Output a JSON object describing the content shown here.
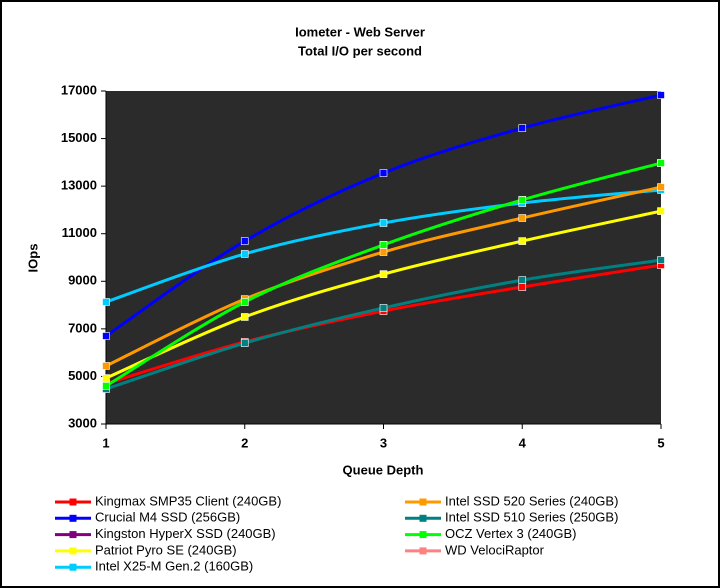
{
  "chart_data": {
    "type": "line",
    "title": "Iometer - Web Server",
    "subtitle": "Total I/O per second",
    "x_label": "Queue Depth",
    "y_label": "IOps",
    "x": [
      1,
      2,
      3,
      4,
      5
    ],
    "xlim": [
      1,
      5
    ],
    "xticks": [
      1,
      2,
      3,
      4,
      5
    ],
    "ylim": [
      3000,
      17000
    ],
    "yticks": [
      3000,
      5000,
      7000,
      9000,
      11000,
      13000,
      15000,
      17000
    ],
    "smooth": true,
    "series": [
      {
        "name": "Kingmax SMP35 Client (240GB)",
        "color": "#ff0000",
        "values": [
          4700,
          6450,
          7750,
          8760,
          9680
        ]
      },
      {
        "name": "Crucial M4 SSD (256GB)",
        "color": "#0000ff",
        "values": [
          6700,
          10690,
          13550,
          15440,
          16830
        ]
      },
      {
        "name": "Kingston HyperX SSD (240GB)",
        "color": "#800080",
        "values": [
          4600,
          8130,
          10530,
          12420,
          13970
        ]
      },
      {
        "name": "Patriot Pyro SE (240GB)",
        "color": "#ffff00",
        "values": [
          4930,
          7500,
          9300,
          10690,
          11950
        ]
      },
      {
        "name": "Intel X25-M Gen.2 (160GB)",
        "color": "#00ccff",
        "values": [
          8130,
          10150,
          11450,
          12290,
          12840
        ]
      },
      {
        "name": "Intel SSD 520 Series (240GB)",
        "color": "#ff9900",
        "values": [
          5440,
          8250,
          10230,
          11660,
          12960
        ]
      },
      {
        "name": "Intel SSD 510 Series (250GB)",
        "color": "#008080",
        "values": [
          4470,
          6400,
          7880,
          9050,
          9890
        ]
      },
      {
        "name": "OCZ Vertex 3 (240GB)",
        "color": "#00ff00",
        "values": [
          4600,
          8130,
          10530,
          12420,
          13970
        ]
      },
      {
        "name": "WD VelociRaptor",
        "color": "#ff8080",
        "values": [
          null,
          null,
          null,
          null,
          null
        ]
      }
    ]
  }
}
